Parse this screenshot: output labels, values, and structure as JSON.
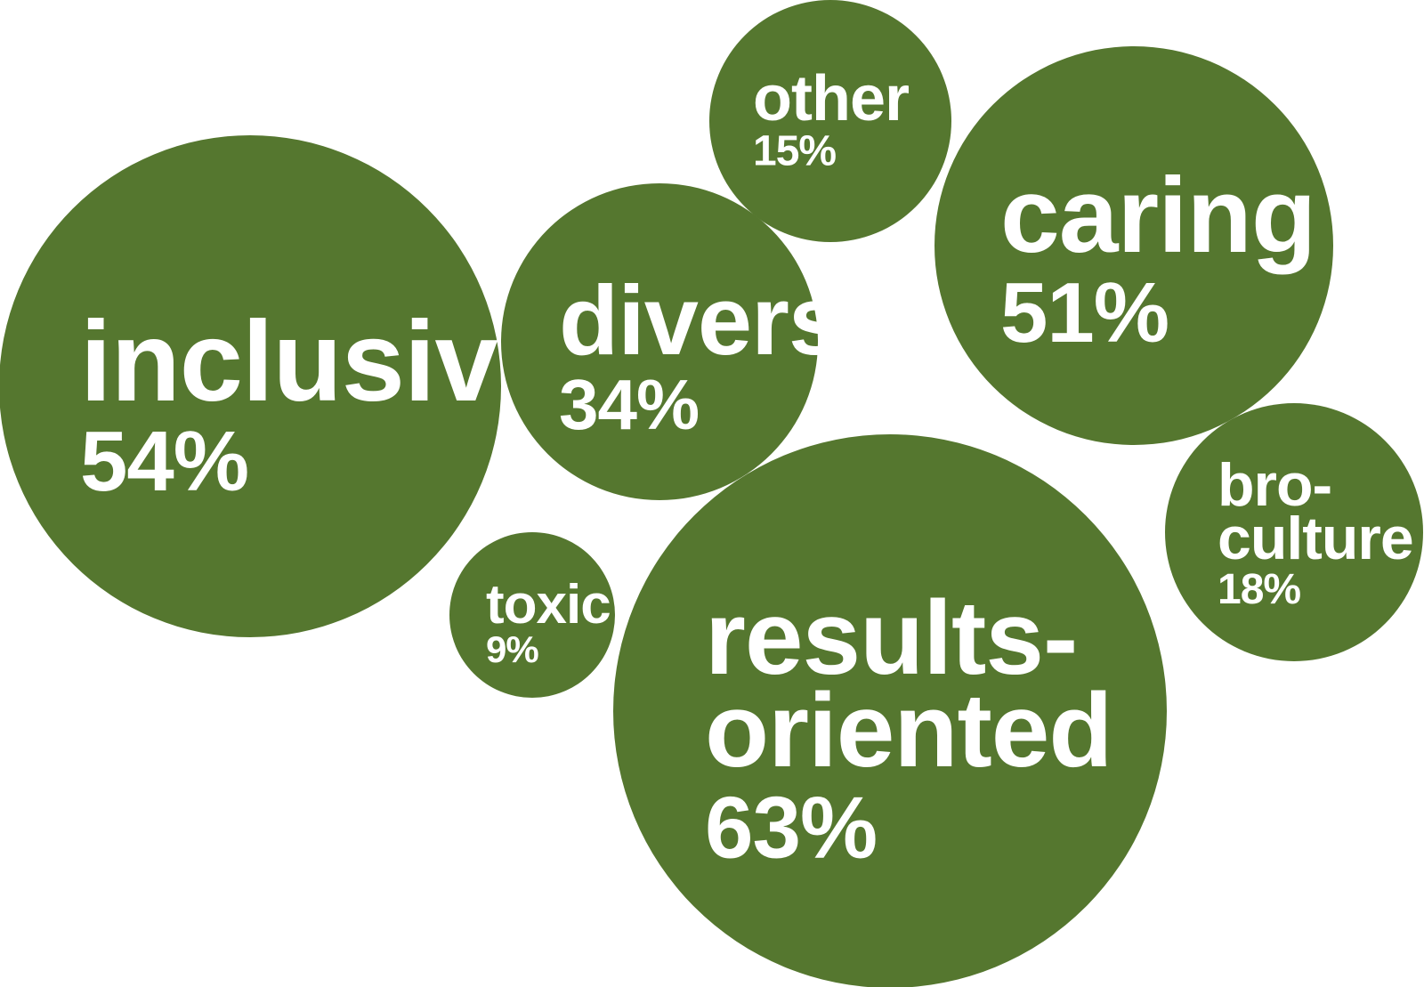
{
  "chart_data": {
    "type": "bubble",
    "title": "",
    "color": "#55772f",
    "label_color": "#ffffff",
    "series": [
      {
        "label": "inclusive",
        "value": 54
      },
      {
        "label": "diverse",
        "value": 34
      },
      {
        "label": "other",
        "value": 15
      },
      {
        "label": "caring",
        "value": 51
      },
      {
        "label": "bro-culture",
        "value": 18
      },
      {
        "label": "toxic",
        "value": 9
      },
      {
        "label": "results-oriented",
        "value": 63
      }
    ],
    "value_suffix": "%"
  }
}
